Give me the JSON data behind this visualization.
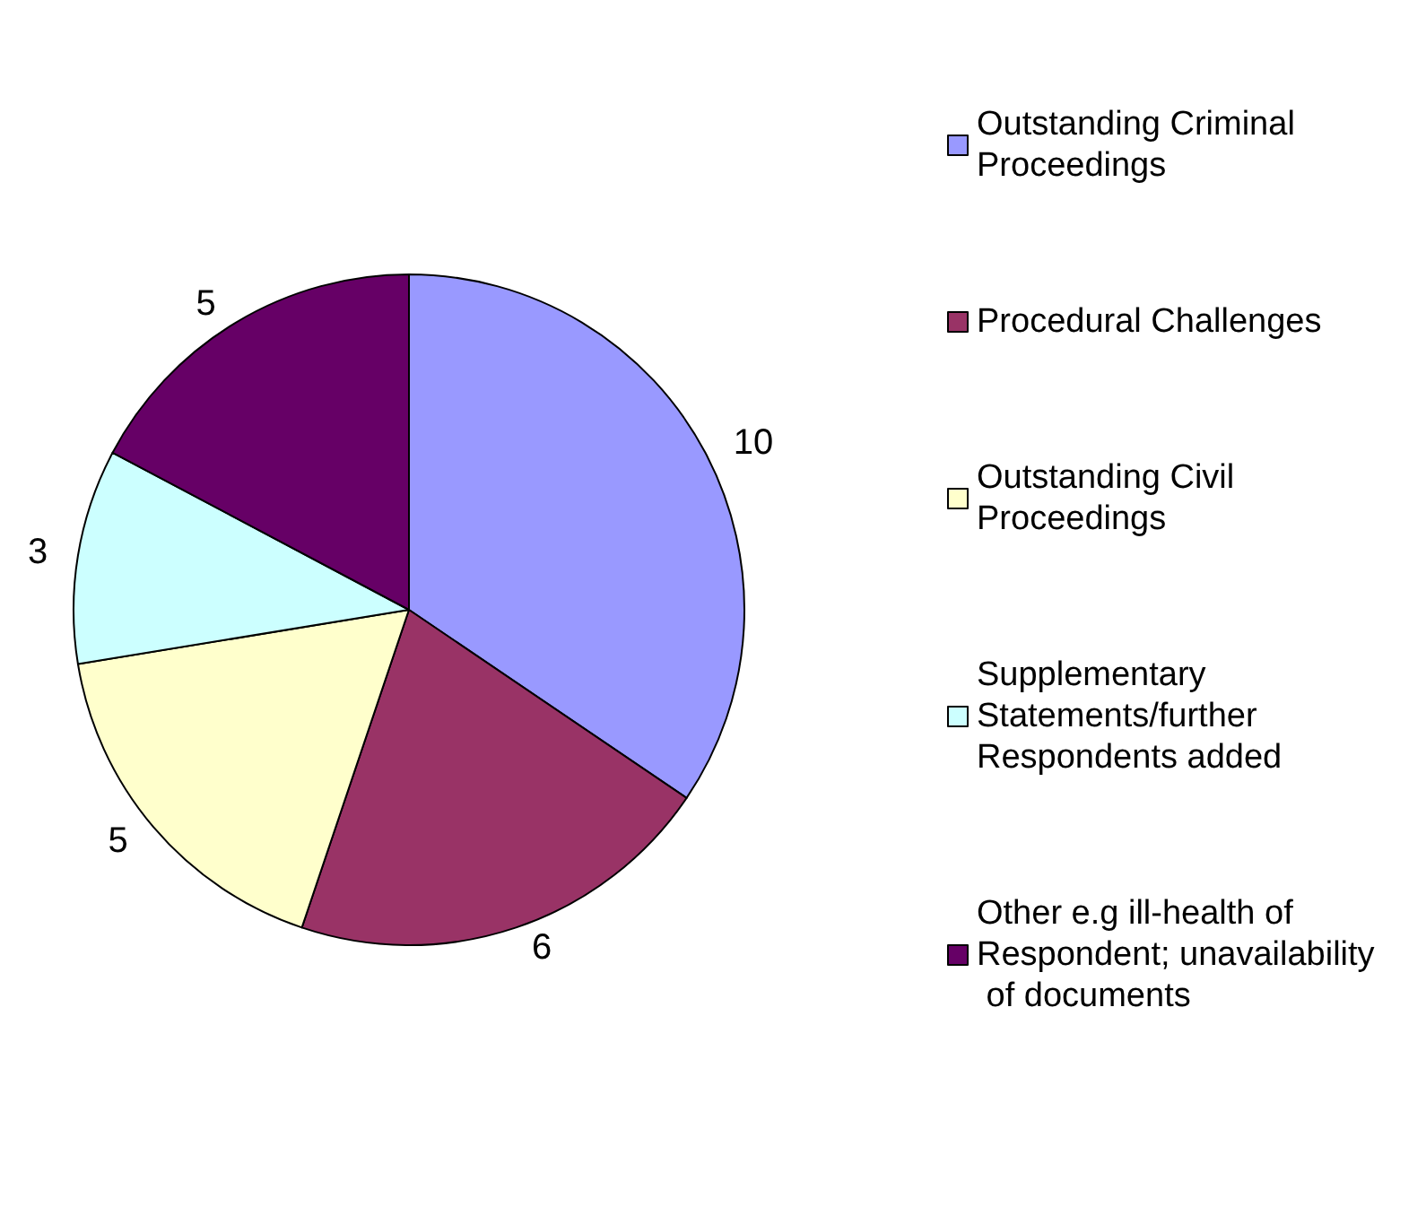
{
  "chart_data": {
    "type": "pie",
    "categories": [
      "Outstanding Criminal Proceedings",
      "Procedural Challenges",
      "Outstanding Civil Proceedings",
      "Supplementary Statements/further Respondents added",
      "Other e.g ill-health of Respondent; unavailability of documents"
    ],
    "values": [
      10,
      6,
      5,
      3,
      5
    ],
    "colors": [
      "#9999ff",
      "#993366",
      "#ffffcc",
      "#ccffff",
      "#660066"
    ],
    "data_labels": true,
    "legend": "right"
  }
}
